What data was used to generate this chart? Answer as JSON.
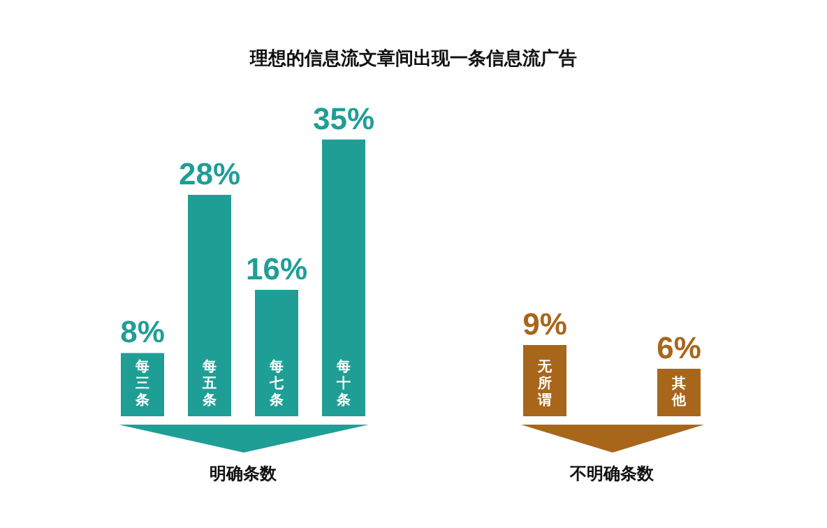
{
  "chart_data": {
    "type": "bar",
    "title": "理想的信息流文章间出现一条信息流广告",
    "categories": [
      "每三条",
      "每五条",
      "每七条",
      "每十条",
      null,
      null,
      "无所谓",
      null,
      "其他"
    ],
    "values": [
      8,
      28,
      16,
      35,
      null,
      null,
      9,
      null,
      6
    ],
    "value_labels": [
      "8%",
      "28%",
      "16%",
      "35%",
      null,
      null,
      "9%",
      null,
      "6%"
    ],
    "colors": [
      "#1f9e96",
      "#1f9e96",
      "#1f9e96",
      "#1f9e96",
      null,
      null,
      "#a8661b",
      null,
      "#a8661b"
    ],
    "annotations": [
      "明确条数",
      "不明确条数"
    ]
  }
}
